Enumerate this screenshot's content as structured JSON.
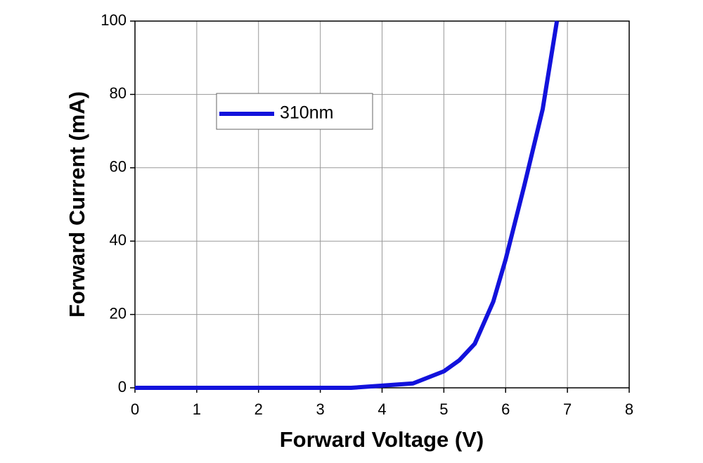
{
  "chart_data": {
    "type": "line",
    "x_label": "Forward Voltage (V)",
    "y_label": "Forward Current (mA)",
    "xlim": [
      0,
      8
    ],
    "xticks": [
      0,
      1,
      2,
      3,
      4,
      5,
      6,
      7,
      8
    ],
    "ylim": [
      0,
      100
    ],
    "yticks": [
      0,
      20,
      40,
      60,
      80,
      100
    ],
    "grid": true,
    "legend": "upper left",
    "series": [
      {
        "name": "310nm",
        "color": "#1212dc",
        "x": [
          0,
          3.5,
          4,
          4.5,
          5,
          5.25,
          5.5,
          5.8,
          6,
          6.3,
          6.6,
          6.83
        ],
        "values": [
          0,
          0,
          0.6,
          1.2,
          4.5,
          7.5,
          12,
          23.5,
          35,
          55,
          76,
          100
        ]
      }
    ]
  }
}
